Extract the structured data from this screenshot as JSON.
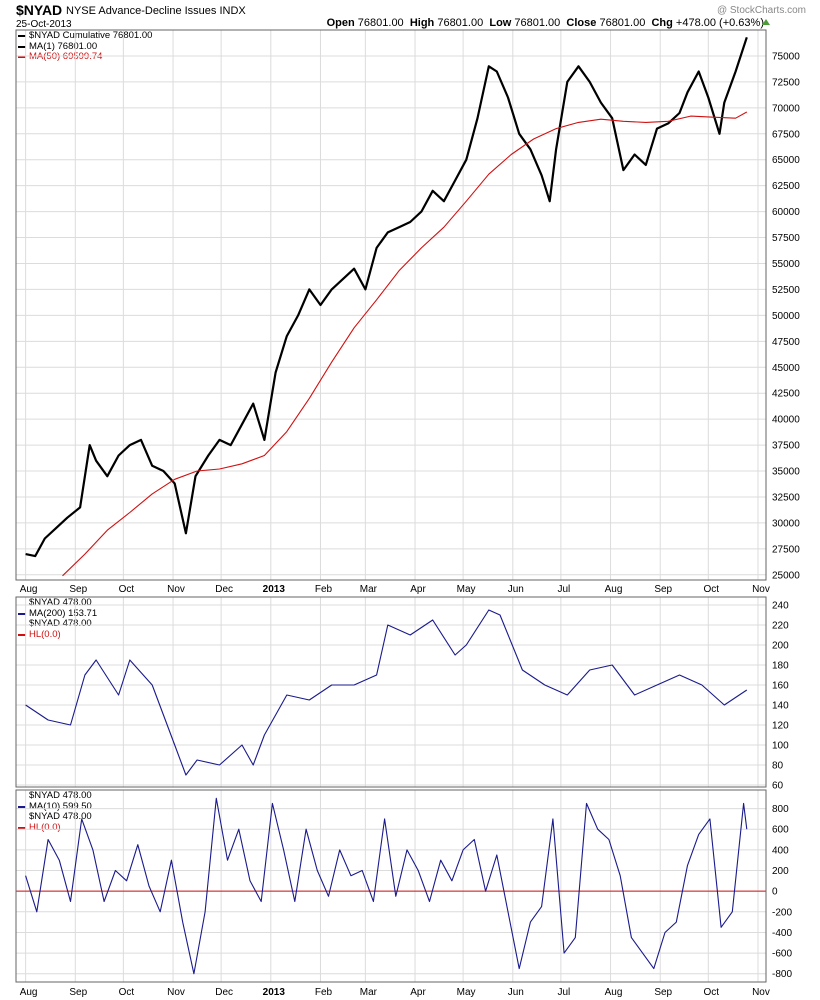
{
  "header": {
    "symbol": "$NYAD",
    "description": "NYSE Advance-Decline Issues INDX",
    "date": "25-Oct-2013",
    "credit": "@ StockCharts.com",
    "open_label": "Open",
    "open": "76801.00",
    "high_label": "High",
    "high": "76801.00",
    "low_label": "Low",
    "low": "76801.00",
    "close_label": "Close",
    "close": "76801.00",
    "chg_label": "Chg",
    "chg": "+478.00 (+0.63%)"
  },
  "colors": {
    "black": "#000000",
    "red": "#d01010",
    "navy": "#1a1a8c",
    "grid": "#dcdcdc",
    "up": "#4c9c3a"
  },
  "panels": {
    "main": {
      "legend": [
        "$NYAD  Cumulative  76801.00",
        "MA(1) 76801.00",
        "MA(50) 69599.74"
      ]
    },
    "mid": {
      "legend": [
        "$NYAD  478.00",
        "MA(200) 153.71",
        "$NYAD  478.00",
        "HL(0.0)"
      ]
    },
    "low": {
      "legend": [
        "$NYAD  478.00",
        "MA(10) 599.50",
        "$NYAD  478.00",
        "HL(0.0)"
      ]
    }
  },
  "chart_data": [
    {
      "type": "line",
      "title": "$NYAD Cumulative",
      "ylim": [
        24500,
        77500
      ],
      "yticks": [
        25000,
        27500,
        30000,
        32500,
        35000,
        37500,
        40000,
        42500,
        45000,
        47500,
        50000,
        52500,
        55000,
        57500,
        60000,
        62500,
        65000,
        67500,
        70000,
        72500,
        75000
      ],
      "xticks": [
        "Aug",
        "Sep",
        "Oct",
        "Nov",
        "Dec",
        "2013",
        "Feb",
        "Mar",
        "Apr",
        "May",
        "Jun",
        "Jul",
        "Aug",
        "Sep",
        "Oct",
        "Nov"
      ],
      "grid": true,
      "series": [
        {
          "name": "MA(1)",
          "x": [
            "2012-08-01",
            "2012-08-07",
            "2012-08-13",
            "2012-08-20",
            "2012-08-27",
            "2012-09-04",
            "2012-09-10",
            "2012-09-14",
            "2012-09-21",
            "2012-09-28",
            "2012-10-05",
            "2012-10-12",
            "2012-10-19",
            "2012-10-26",
            "2012-11-02",
            "2012-11-09",
            "2012-11-15",
            "2012-11-23",
            "2012-11-30",
            "2012-12-07",
            "2012-12-14",
            "2012-12-21",
            "2012-12-28",
            "2013-01-04",
            "2013-01-11",
            "2013-01-18",
            "2013-01-25",
            "2013-02-01",
            "2013-02-08",
            "2013-02-15",
            "2013-02-22",
            "2013-03-01",
            "2013-03-08",
            "2013-03-15",
            "2013-03-22",
            "2013-03-29",
            "2013-04-05",
            "2013-04-12",
            "2013-04-19",
            "2013-04-26",
            "2013-05-03",
            "2013-05-10",
            "2013-05-17",
            "2013-05-22",
            "2013-05-29",
            "2013-06-05",
            "2013-06-12",
            "2013-06-19",
            "2013-06-24",
            "2013-06-28",
            "2013-07-05",
            "2013-07-12",
            "2013-07-19",
            "2013-07-26",
            "2013-08-02",
            "2013-08-09",
            "2013-08-16",
            "2013-08-23",
            "2013-08-30",
            "2013-09-06",
            "2013-09-13",
            "2013-09-18",
            "2013-09-25",
            "2013-10-01",
            "2013-10-08",
            "2013-10-11",
            "2013-10-18",
            "2013-10-25"
          ],
          "values": [
            27000,
            26800,
            28500,
            29500,
            30500,
            31500,
            37500,
            36000,
            34500,
            36500,
            37500,
            38000,
            35500,
            35000,
            33800,
            29000,
            34500,
            36500,
            38000,
            37500,
            39500,
            41500,
            38000,
            44500,
            48000,
            50000,
            52500,
            51000,
            52500,
            53500,
            54500,
            52500,
            56500,
            58000,
            58500,
            59000,
            60000,
            62000,
            61000,
            63000,
            65000,
            69000,
            74000,
            73500,
            71000,
            67500,
            66000,
            63500,
            61000,
            66000,
            72500,
            74000,
            72500,
            70500,
            69000,
            64000,
            65500,
            64500,
            68000,
            68500,
            69500,
            71500,
            73500,
            71000,
            67500,
            70500,
            73500,
            76801
          ]
        },
        {
          "name": "MA(50)",
          "x": [
            "2012-08-24",
            "2012-09-07",
            "2012-09-21",
            "2012-10-05",
            "2012-10-19",
            "2012-11-02",
            "2012-11-16",
            "2012-11-30",
            "2012-12-14",
            "2012-12-28",
            "2013-01-11",
            "2013-01-25",
            "2013-02-08",
            "2013-02-22",
            "2013-03-08",
            "2013-03-22",
            "2013-04-05",
            "2013-04-19",
            "2013-05-03",
            "2013-05-17",
            "2013-05-31",
            "2013-06-14",
            "2013-06-28",
            "2013-07-12",
            "2013-07-26",
            "2013-08-09",
            "2013-08-23",
            "2013-09-06",
            "2013-09-20",
            "2013-10-04",
            "2013-10-18",
            "2013-10-25"
          ],
          "values": [
            24900,
            27000,
            29300,
            31000,
            32800,
            34200,
            35000,
            35200,
            35700,
            36500,
            38800,
            42000,
            45500,
            48800,
            51500,
            54300,
            56500,
            58500,
            61000,
            63600,
            65500,
            67000,
            68000,
            68600,
            68900,
            68700,
            68600,
            68700,
            69200,
            69100,
            69000,
            69600
          ]
        }
      ]
    },
    {
      "type": "line",
      "title": "$NYAD MA(200)",
      "ylim": [
        58,
        248
      ],
      "yticks": [
        60,
        80,
        100,
        120,
        140,
        160,
        180,
        200,
        220,
        240
      ],
      "series": [
        {
          "name": "MA(200)",
          "x": [
            "2012-08-01",
            "2012-08-15",
            "2012-08-29",
            "2012-09-07",
            "2012-09-14",
            "2012-09-28",
            "2012-10-05",
            "2012-10-19",
            "2012-11-02",
            "2012-11-09",
            "2012-11-16",
            "2012-11-30",
            "2012-12-14",
            "2012-12-21",
            "2012-12-28",
            "2013-01-11",
            "2013-01-25",
            "2013-02-08",
            "2013-02-22",
            "2013-03-08",
            "2013-03-15",
            "2013-03-29",
            "2013-04-12",
            "2013-04-26",
            "2013-05-03",
            "2013-05-17",
            "2013-05-24",
            "2013-06-07",
            "2013-06-21",
            "2013-07-05",
            "2013-07-19",
            "2013-08-02",
            "2013-08-16",
            "2013-08-30",
            "2013-09-13",
            "2013-09-27",
            "2013-10-11",
            "2013-10-25"
          ],
          "values": [
            140,
            125,
            120,
            170,
            185,
            150,
            185,
            160,
            100,
            70,
            85,
            80,
            100,
            80,
            110,
            150,
            145,
            160,
            160,
            170,
            220,
            210,
            225,
            190,
            200,
            235,
            230,
            175,
            160,
            150,
            175,
            180,
            150,
            160,
            170,
            160,
            140,
            155
          ]
        }
      ]
    },
    {
      "type": "line",
      "title": "$NYAD MA(10)",
      "ylim": [
        -880,
        980
      ],
      "yticks": [
        -800,
        -600,
        -400,
        -200,
        0,
        200,
        400,
        600,
        800
      ],
      "series": [
        {
          "name": "MA(10)",
          "x": [
            "2012-08-01",
            "2012-08-08",
            "2012-08-15",
            "2012-08-22",
            "2012-08-29",
            "2012-09-05",
            "2012-09-12",
            "2012-09-19",
            "2012-09-26",
            "2012-10-03",
            "2012-10-10",
            "2012-10-17",
            "2012-10-24",
            "2012-10-31",
            "2012-11-07",
            "2012-11-14",
            "2012-11-21",
            "2012-11-28",
            "2012-12-05",
            "2012-12-12",
            "2012-12-19",
            "2012-12-26",
            "2013-01-02",
            "2013-01-09",
            "2013-01-16",
            "2013-01-23",
            "2013-01-30",
            "2013-02-06",
            "2013-02-13",
            "2013-02-20",
            "2013-02-27",
            "2013-03-06",
            "2013-03-13",
            "2013-03-20",
            "2013-03-27",
            "2013-04-03",
            "2013-04-10",
            "2013-04-17",
            "2013-04-24",
            "2013-05-01",
            "2013-05-08",
            "2013-05-15",
            "2013-05-22",
            "2013-05-29",
            "2013-06-05",
            "2013-06-12",
            "2013-06-19",
            "2013-06-26",
            "2013-07-03",
            "2013-07-10",
            "2013-07-17",
            "2013-07-24",
            "2013-07-31",
            "2013-08-07",
            "2013-08-14",
            "2013-08-21",
            "2013-08-28",
            "2013-09-04",
            "2013-09-11",
            "2013-09-18",
            "2013-09-25",
            "2013-10-02",
            "2013-10-09",
            "2013-10-16",
            "2013-10-23",
            "2013-10-25"
          ],
          "values": [
            150,
            -200,
            500,
            300,
            -100,
            700,
            400,
            -100,
            200,
            100,
            450,
            50,
            -200,
            300,
            -300,
            -800,
            -200,
            900,
            300,
            600,
            100,
            -100,
            850,
            400,
            -100,
            600,
            200,
            -50,
            400,
            150,
            200,
            -100,
            700,
            -50,
            400,
            200,
            -100,
            300,
            100,
            400,
            500,
            0,
            350,
            -200,
            -750,
            -300,
            -150,
            700,
            -600,
            -450,
            850,
            600,
            500,
            150,
            -450,
            -600,
            -750,
            -400,
            -300,
            250,
            550,
            700,
            -350,
            -200,
            850,
            600
          ]
        }
      ]
    }
  ]
}
